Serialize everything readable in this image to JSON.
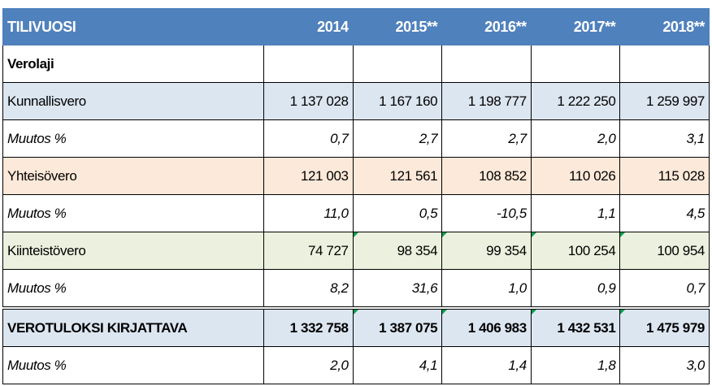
{
  "header": {
    "label": "TILIVUOSI",
    "years": [
      "2014",
      "2015**",
      "2016**",
      "2017**",
      "2018**"
    ]
  },
  "section_label": "Verolaji",
  "rows": [
    {
      "label": "Kunnallisvero",
      "values": [
        "1 137 028",
        "1 167 160",
        "1 198 777",
        "1 222 250",
        "1 259 997"
      ]
    },
    {
      "label": "Muutos %",
      "values": [
        "0,7",
        "2,7",
        "2,7",
        "2,0",
        "3,1"
      ]
    },
    {
      "label": "Yhteisövero",
      "values": [
        "121 003",
        "121 561",
        "108 852",
        "110 026",
        "115 028"
      ]
    },
    {
      "label": "Muutos %",
      "values": [
        "11,0",
        "0,5",
        "-10,5",
        "1,1",
        "4,5"
      ]
    },
    {
      "label": "Kiinteistövero",
      "values": [
        "74 727",
        "98 354",
        "99 354",
        "100 254",
        "100 954"
      ]
    },
    {
      "label": "Muutos %",
      "values": [
        "8,2",
        "31,6",
        "1,0",
        "0,9",
        "0,7"
      ]
    },
    {
      "label": "VEROTULOKSI KIRJATTAVA",
      "values": [
        "1 332 758",
        "1 387 075",
        "1 406 983",
        "1 432 531",
        "1 475 979"
      ]
    },
    {
      "label": "Muutos %",
      "values": [
        "2,0",
        "4,1",
        "1,4",
        "1,8",
        "3,0"
      ]
    }
  ],
  "colors": {
    "header_bg": "#4f81bd",
    "kunnallisvero_bg": "#dce6f1",
    "yhteisovero_bg": "#fde9d9",
    "kiinteistovero_bg": "#ebf1de",
    "total_bg": "#dce6f1",
    "cell_marker": "#00a050"
  }
}
